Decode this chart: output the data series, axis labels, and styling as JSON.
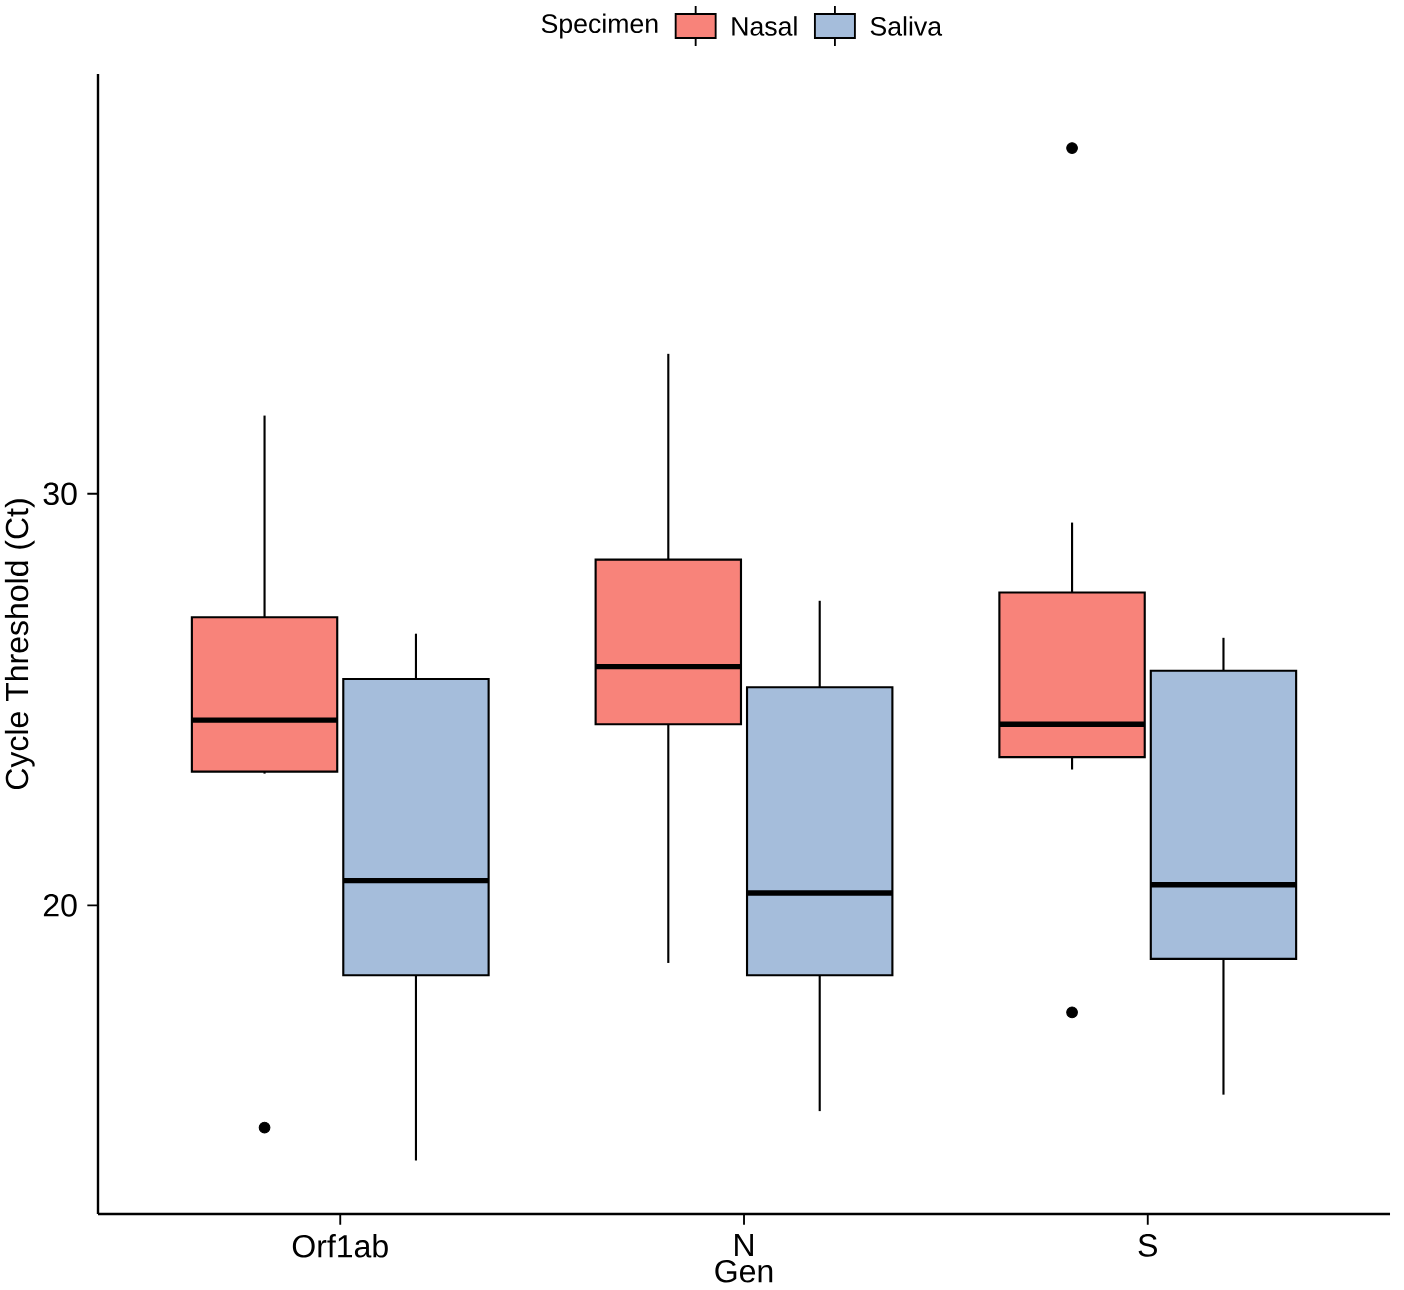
{
  "chart_data": {
    "type": "box",
    "xlabel": "Gen",
    "ylabel": "Cycle Threshold (Ct)",
    "legend_title": "Specimen",
    "legend": "top",
    "grid": false,
    "categories": [
      "Orf1ab",
      "N",
      "S"
    ],
    "ylim": [
      12.5,
      40.2
    ],
    "yticks": [
      20,
      30
    ],
    "series": [
      {
        "name": "Nasal",
        "color": "#f8837a",
        "boxes": [
          {
            "low": 23.2,
            "q1": 23.25,
            "median": 24.5,
            "q3": 27.0,
            "high": 31.9,
            "outliers": [
              14.6
            ]
          },
          {
            "low": 18.6,
            "q1": 24.4,
            "median": 25.8,
            "q3": 28.4,
            "high": 33.4
          },
          {
            "low": 23.3,
            "q1": 23.6,
            "median": 24.4,
            "q3": 27.6,
            "high": 29.3,
            "outliers": [
              38.4,
              17.4
            ]
          }
        ]
      },
      {
        "name": "Saliva",
        "color": "#a5bddb",
        "boxes": [
          {
            "low": 13.8,
            "q1": 18.3,
            "median": 20.6,
            "q3": 25.5,
            "high": 26.6
          },
          {
            "low": 15.0,
            "q1": 18.3,
            "median": 20.3,
            "q3": 25.3,
            "high": 27.4
          },
          {
            "low": 15.4,
            "q1": 18.7,
            "median": 20.5,
            "q3": 25.7,
            "high": 26.5
          }
        ]
      }
    ]
  }
}
